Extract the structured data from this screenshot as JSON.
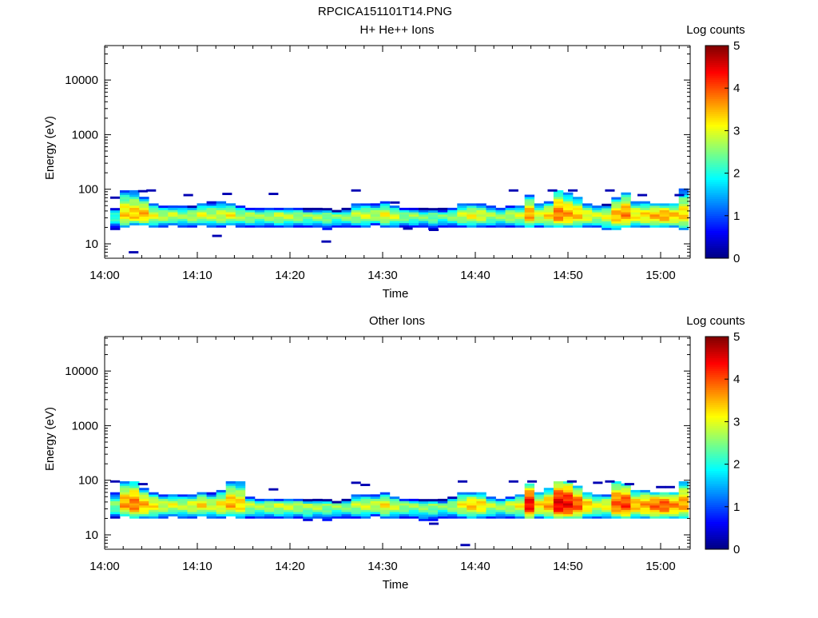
{
  "title": "RPCICA151101T14.PNG",
  "chart_data": [
    {
      "type": "heatmap",
      "title": "H+ He++ Ions",
      "xlabel": "Time",
      "ylabel": "Energy (eV)",
      "yscale": "log",
      "ylim": [
        5.4,
        42700
      ],
      "yticks": [
        10,
        100,
        1000,
        10000
      ],
      "ytick_labels": [
        "10",
        "100",
        "1000",
        "10000"
      ],
      "xlim_minutes_after_1400": [
        0,
        63.5
      ],
      "xticks_minutes": [
        0,
        10,
        20,
        30,
        40,
        50,
        60
      ],
      "xtick_labels": [
        "14:00",
        "14:10",
        "14:20",
        "14:30",
        "14:40",
        "14:50",
        "15:00"
      ],
      "colorbar": {
        "label": "Log counts",
        "range": [
          0,
          5
        ],
        "ticks": [
          "0",
          "1",
          "2",
          "3",
          "4",
          "5"
        ],
        "colormap": "jet"
      },
      "time_bins": {
        "start_minute": 0.6,
        "bin_minutes": 1.04,
        "count": 60
      },
      "peak_energy_eV": 33,
      "peak_log_counts": [
        2.2,
        3.3,
        3.4,
        3.5,
        3.0,
        2.8,
        2.9,
        2.6,
        2.8,
        3.0,
        2.8,
        2.9,
        3.1,
        2.7,
        2.8,
        2.6,
        2.7,
        2.9,
        2.8,
        2.7,
        2.6,
        2.7,
        2.6,
        2.5,
        2.6,
        2.8,
        2.9,
        2.8,
        3.1,
        2.9,
        2.6,
        2.6,
        2.5,
        2.5,
        2.4,
        2.6,
        2.9,
        3.1,
        3.0,
        2.7,
        2.6,
        2.8,
        2.9,
        3.6,
        3.0,
        3.3,
        3.8,
        3.6,
        3.4,
        3.1,
        2.9,
        3.0,
        3.5,
        3.7,
        3.2,
        3.3,
        3.5,
        3.6,
        3.4,
        3.3
      ],
      "band_high_eV": [
        45,
        95,
        90,
        70,
        55,
        50,
        50,
        50,
        48,
        55,
        58,
        60,
        55,
        50,
        45,
        45,
        45,
        45,
        45,
        45,
        42,
        42,
        42,
        40,
        42,
        55,
        55,
        55,
        58,
        50,
        45,
        45,
        42,
        42,
        42,
        45,
        55,
        55,
        55,
        50,
        45,
        50,
        50,
        75,
        55,
        60,
        95,
        80,
        70,
        55,
        50,
        50,
        70,
        85,
        60,
        58,
        55,
        55,
        55,
        95
      ],
      "band_low_eV": [
        18,
        20,
        22,
        22,
        20,
        20,
        22,
        20,
        20,
        22,
        20,
        20,
        22,
        20,
        20,
        20,
        20,
        20,
        20,
        20,
        20,
        20,
        18,
        20,
        20,
        20,
        20,
        22,
        20,
        20,
        20,
        20,
        20,
        18,
        20,
        20,
        20,
        20,
        20,
        20,
        20,
        20,
        20,
        20,
        20,
        20,
        20,
        20,
        20,
        20,
        20,
        18,
        18,
        20,
        20,
        20,
        20,
        20,
        20,
        18
      ],
      "isolated_counts": [
        [
          0.6,
          70
        ],
        [
          2.6,
          7
        ],
        [
          3.6,
          92
        ],
        [
          4.5,
          95
        ],
        [
          8.5,
          78
        ],
        [
          12.7,
          82
        ],
        [
          11.6,
          14
        ],
        [
          17.7,
          82
        ],
        [
          23.4,
          11
        ],
        [
          26.6,
          95
        ],
        [
          30.8,
          57
        ],
        [
          32.2,
          19
        ],
        [
          35.0,
          18
        ],
        [
          43.6,
          95
        ],
        [
          47.8,
          95
        ],
        [
          50.0,
          95
        ],
        [
          54.0,
          95
        ],
        [
          57.5,
          78
        ],
        [
          61.5,
          78
        ]
      ]
    },
    {
      "type": "heatmap",
      "title": "Other Ions",
      "xlabel": "Time",
      "ylabel": "Energy (eV)",
      "yscale": "log",
      "ylim": [
        5.4,
        42700
      ],
      "yticks": [
        10,
        100,
        1000,
        10000
      ],
      "ytick_labels": [
        "10",
        "100",
        "1000",
        "10000"
      ],
      "xlim_minutes_after_1400": [
        0,
        63.5
      ],
      "xticks_minutes": [
        0,
        10,
        20,
        30,
        40,
        50,
        60
      ],
      "xtick_labels": [
        "14:00",
        "14:10",
        "14:20",
        "14:30",
        "14:40",
        "14:50",
        "15:00"
      ],
      "colorbar": {
        "label": "Log counts",
        "range": [
          0,
          5
        ],
        "ticks": [
          "0",
          "1",
          "2",
          "3",
          "4",
          "5"
        ],
        "colormap": "jet"
      },
      "time_bins": {
        "start_minute": 0.6,
        "bin_minutes": 1.04,
        "count": 60
      },
      "peak_energy_eV": 35,
      "peak_log_counts": [
        2.5,
        3.6,
        3.8,
        3.5,
        3.2,
        2.9,
        3.0,
        2.8,
        3.0,
        3.3,
        2.9,
        3.2,
        3.5,
        3.3,
        2.8,
        2.7,
        2.8,
        2.9,
        2.9,
        2.8,
        2.7,
        2.8,
        2.6,
        2.6,
        2.6,
        2.8,
        2.9,
        2.9,
        3.2,
        2.9,
        2.7,
        2.6,
        2.6,
        2.6,
        2.5,
        2.7,
        3.1,
        3.4,
        3.3,
        2.8,
        2.7,
        2.9,
        3.1,
        4.4,
        3.3,
        3.6,
        4.5,
        4.4,
        4.0,
        3.4,
        3.0,
        3.1,
        3.9,
        4.1,
        3.5,
        3.6,
        3.9,
        4.0,
        3.7,
        3.6
      ],
      "band_high_eV": [
        60,
        95,
        95,
        70,
        60,
        55,
        55,
        55,
        55,
        60,
        58,
        65,
        95,
        95,
        50,
        45,
        45,
        45,
        45,
        45,
        42,
        42,
        42,
        40,
        42,
        55,
        55,
        55,
        58,
        50,
        45,
        45,
        42,
        42,
        42,
        48,
        60,
        60,
        60,
        50,
        45,
        50,
        55,
        85,
        60,
        70,
        95,
        95,
        75,
        60,
        55,
        55,
        95,
        85,
        65,
        65,
        60,
        60,
        60,
        95
      ],
      "band_low_eV": [
        20,
        22,
        20,
        20,
        20,
        20,
        22,
        20,
        20,
        22,
        20,
        20,
        22,
        20,
        20,
        20,
        20,
        20,
        20,
        20,
        18,
        20,
        18,
        20,
        20,
        20,
        20,
        22,
        20,
        20,
        20,
        20,
        18,
        18,
        20,
        20,
        20,
        20,
        20,
        20,
        20,
        20,
        20,
        20,
        20,
        20,
        20,
        20,
        20,
        20,
        20,
        20,
        20,
        20,
        20,
        20,
        20,
        20,
        20,
        20
      ],
      "isolated_counts": [
        [
          0.6,
          95
        ],
        [
          3.6,
          85
        ],
        [
          17.7,
          68
        ],
        [
          26.6,
          90
        ],
        [
          27.6,
          82
        ],
        [
          35.0,
          16
        ],
        [
          38.1,
          95
        ],
        [
          38.4,
          6.5
        ],
        [
          43.6,
          95
        ],
        [
          45.6,
          95
        ],
        [
          49.9,
          95
        ],
        [
          52.7,
          90
        ],
        [
          54.0,
          95
        ],
        [
          56.1,
          85
        ],
        [
          59.5,
          75
        ],
        [
          60.5,
          75
        ]
      ]
    }
  ]
}
